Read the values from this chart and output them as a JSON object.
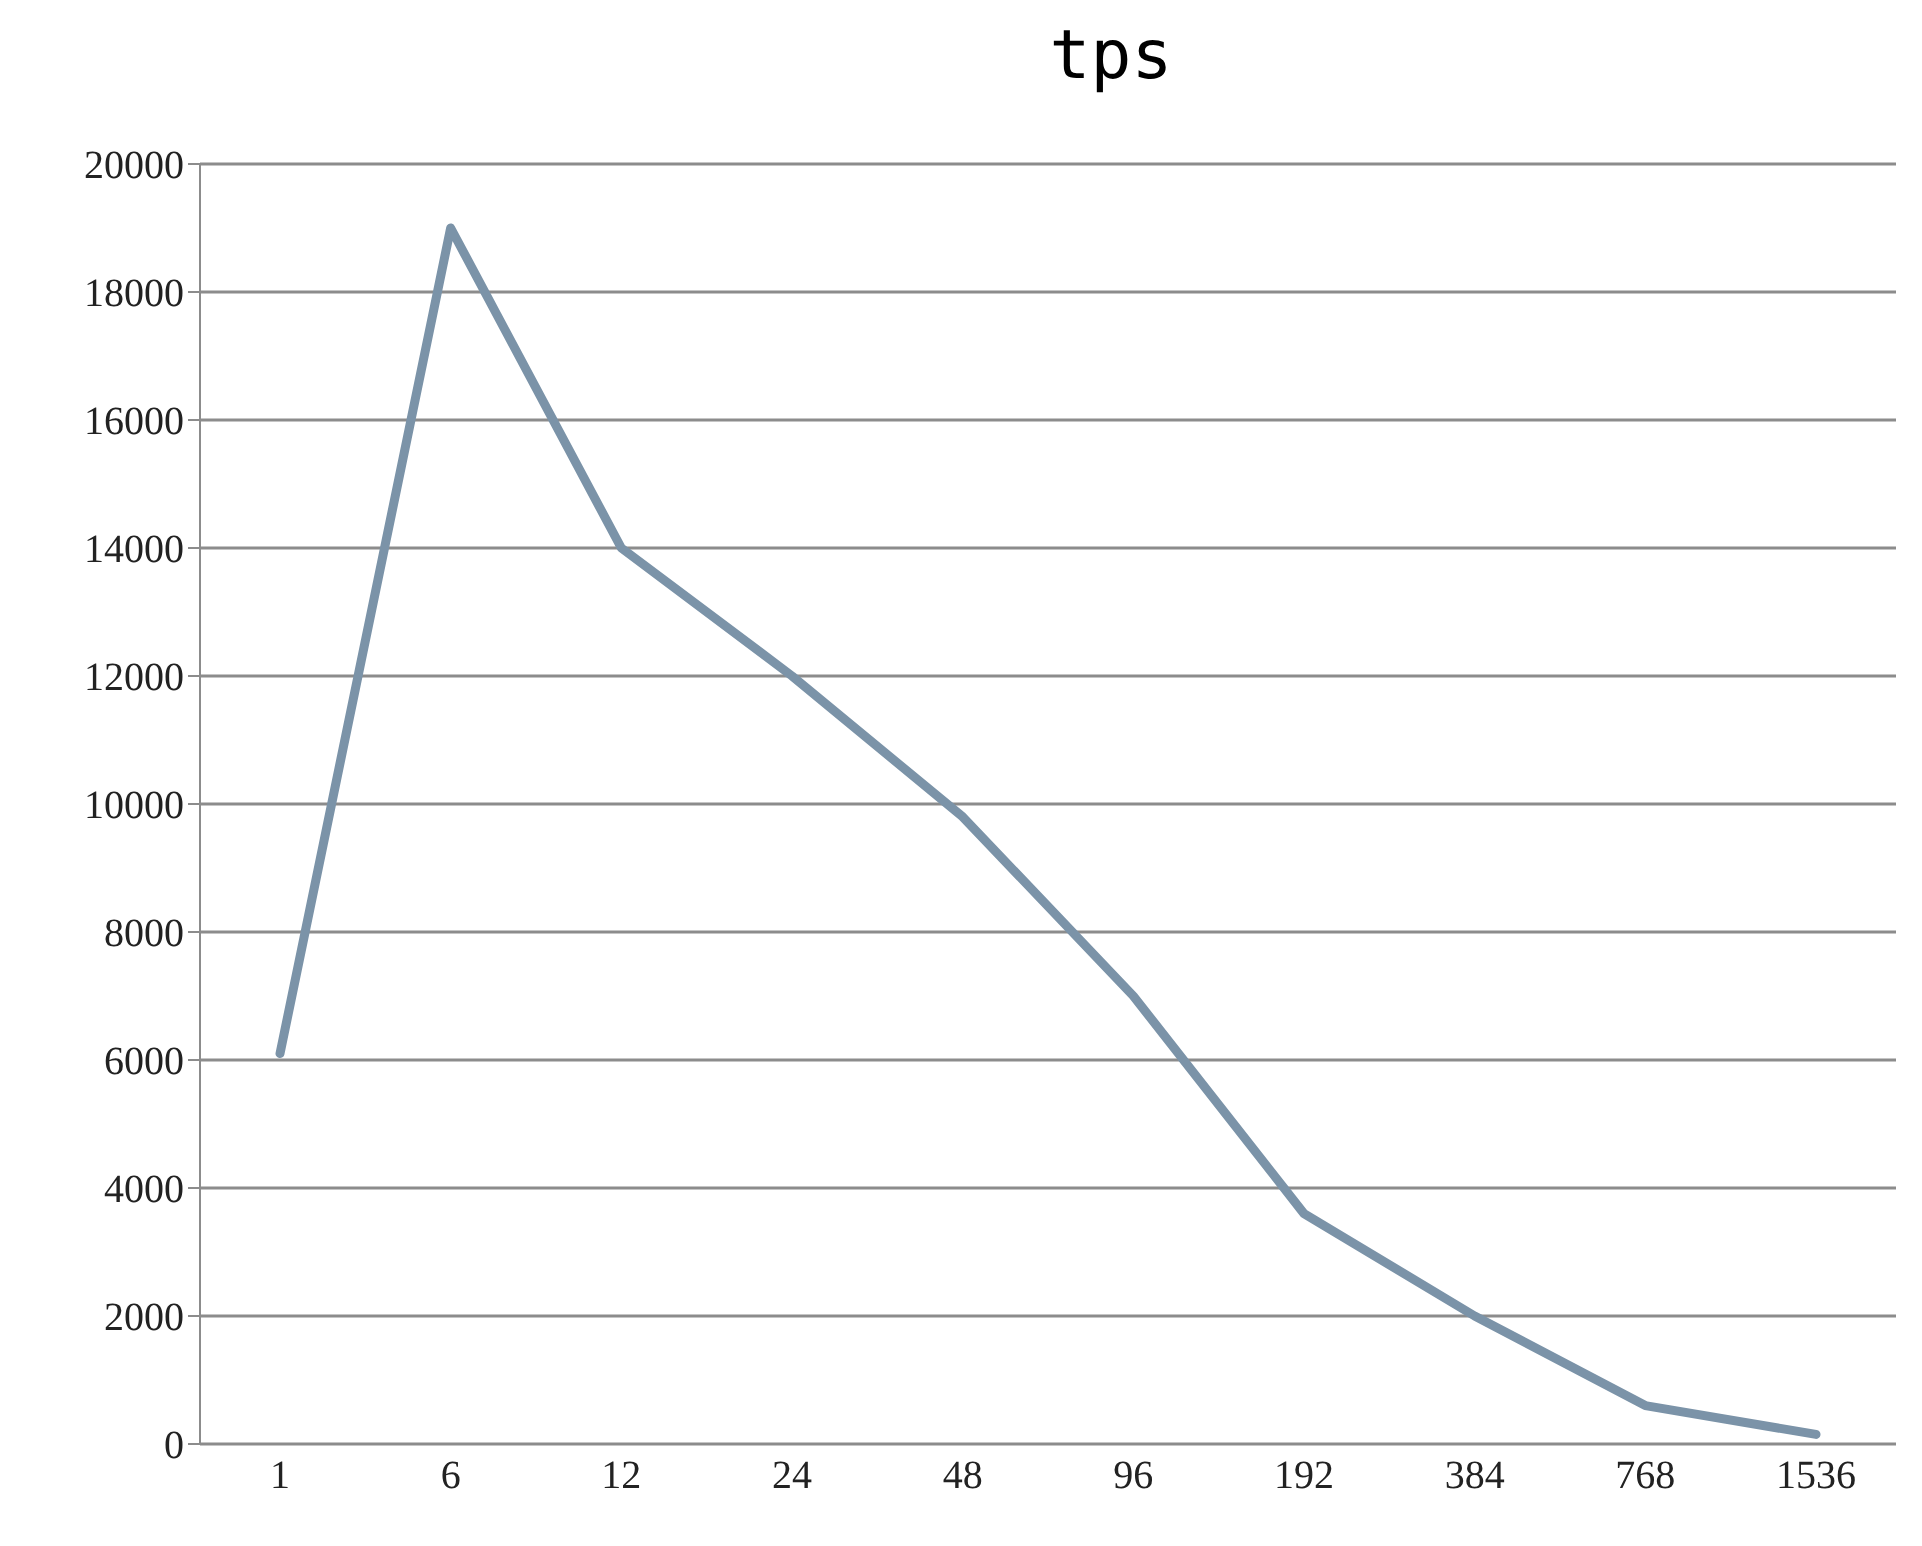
{
  "chart_data": {
    "type": "line",
    "title": "tps",
    "categories": [
      "1",
      "6",
      "12",
      "24",
      "48",
      "96",
      "192",
      "384",
      "768",
      "1536"
    ],
    "series": [
      {
        "color": "#7b93a8",
        "values": [
          6100,
          19000,
          14000,
          12000,
          9800,
          7000,
          3600,
          2000,
          600,
          150
        ]
      }
    ],
    "ylim": [
      0,
      20000
    ],
    "yticks": [
      0,
      2000,
      4000,
      6000,
      8000,
      10000,
      12000,
      14000,
      16000,
      18000,
      20000
    ],
    "grid": "y",
    "legend": false,
    "marker": "none",
    "line_style": "solid"
  }
}
